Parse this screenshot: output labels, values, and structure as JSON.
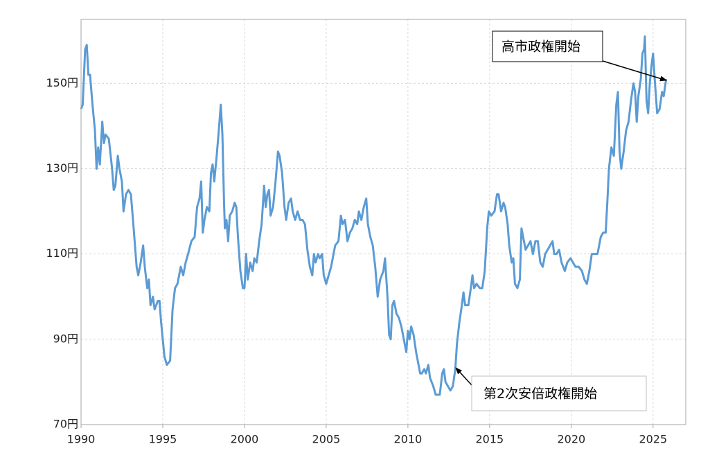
{
  "chart_data": {
    "type": "line",
    "x": [
      1990.0,
      1990.1,
      1990.25,
      1990.35,
      1990.45,
      1990.55,
      1990.7,
      1990.85,
      1990.95,
      1991.05,
      1991.15,
      1991.3,
      1991.4,
      1991.5,
      1991.7,
      1991.9,
      1992.0,
      1992.1,
      1992.25,
      1992.35,
      1992.5,
      1992.6,
      1992.75,
      1992.9,
      1993.05,
      1993.2,
      1993.4,
      1993.5,
      1993.65,
      1993.8,
      1993.9,
      1994.05,
      1994.15,
      1994.25,
      1994.4,
      1994.5,
      1994.7,
      1994.8,
      1994.9,
      1995.1,
      1995.25,
      1995.45,
      1995.6,
      1995.75,
      1995.9,
      1996.1,
      1996.25,
      1996.4,
      1996.55,
      1996.75,
      1996.95,
      1997.1,
      1997.25,
      1997.35,
      1997.45,
      1997.55,
      1997.7,
      1997.85,
      1997.95,
      1998.05,
      1998.15,
      1998.3,
      1998.45,
      1998.55,
      1998.65,
      1998.75,
      1998.8,
      1998.9,
      1999.0,
      1999.1,
      1999.25,
      1999.4,
      1999.5,
      1999.6,
      1999.75,
      1999.9,
      2000.0,
      2000.1,
      2000.2,
      2000.35,
      2000.5,
      2000.6,
      2000.75,
      2000.9,
      2001.05,
      2001.2,
      2001.3,
      2001.4,
      2001.5,
      2001.6,
      2001.75,
      2001.9,
      2002.05,
      2002.15,
      2002.3,
      2002.45,
      2002.55,
      2002.7,
      2002.85,
      2002.95,
      2003.1,
      2003.25,
      2003.4,
      2003.55,
      2003.7,
      2003.85,
      2004.0,
      2004.15,
      2004.25,
      2004.35,
      2004.5,
      2004.6,
      2004.75,
      2004.85,
      2005.0,
      2005.15,
      2005.3,
      2005.45,
      2005.55,
      2005.75,
      2005.9,
      2006.0,
      2006.15,
      2006.3,
      2006.45,
      2006.6,
      2006.75,
      2006.9,
      2007.0,
      2007.15,
      2007.3,
      2007.45,
      2007.55,
      2007.7,
      2007.85,
      2008.0,
      2008.15,
      2008.3,
      2008.5,
      2008.6,
      2008.75,
      2008.85,
      2008.95,
      2009.05,
      2009.15,
      2009.3,
      2009.45,
      2009.6,
      2009.75,
      2009.9,
      2010.0,
      2010.1,
      2010.2,
      2010.35,
      2010.5,
      2010.6,
      2010.75,
      2010.85,
      2011.0,
      2011.1,
      2011.25,
      2011.35,
      2011.55,
      2011.7,
      2011.8,
      2011.95,
      2012.1,
      2012.2,
      2012.3,
      2012.45,
      2012.6,
      2012.75,
      2012.9,
      2013.0,
      2013.15,
      2013.3,
      2013.4,
      2013.5,
      2013.7,
      2013.85,
      2013.95,
      2014.05,
      2014.2,
      2014.4,
      2014.55,
      2014.7,
      2014.85,
      2014.95,
      2015.1,
      2015.3,
      2015.45,
      2015.55,
      2015.7,
      2015.85,
      2015.95,
      2016.1,
      2016.2,
      2016.35,
      2016.45,
      2016.55,
      2016.7,
      2016.85,
      2016.95,
      2017.05,
      2017.2,
      2017.35,
      2017.5,
      2017.65,
      2017.8,
      2017.95,
      2018.1,
      2018.25,
      2018.4,
      2018.55,
      2018.7,
      2018.85,
      2018.95,
      2019.1,
      2019.25,
      2019.4,
      2019.6,
      2019.75,
      2019.95,
      2020.1,
      2020.25,
      2020.45,
      2020.65,
      2020.8,
      2020.95,
      2021.1,
      2021.25,
      2021.45,
      2021.6,
      2021.8,
      2021.95,
      2022.1,
      2022.2,
      2022.3,
      2022.45,
      2022.6,
      2022.75,
      2022.85,
      2022.95,
      2023.05,
      2023.2,
      2023.35,
      2023.5,
      2023.65,
      2023.8,
      2023.9,
      2024.0,
      2024.1,
      2024.25,
      2024.35,
      2024.45,
      2024.5,
      2024.6,
      2024.7,
      2024.8,
      2024.9,
      2025.0,
      2025.1,
      2025.25,
      2025.4,
      2025.55,
      2025.65,
      2025.8
    ],
    "values": [
      144,
      145,
      158,
      159,
      152,
      152,
      145,
      139,
      130,
      135,
      131,
      141,
      136,
      138,
      137,
      130,
      125,
      126,
      133,
      130,
      127,
      120,
      124,
      125,
      124,
      117,
      107,
      105,
      108,
      112,
      107,
      102,
      104,
      98,
      100,
      97,
      99,
      99,
      94,
      86,
      84,
      85,
      97,
      102,
      103,
      107,
      105,
      108,
      110,
      113,
      114,
      121,
      123,
      127,
      115,
      118,
      121,
      120,
      129,
      131,
      127,
      133,
      140,
      145,
      138,
      122,
      116,
      118,
      113,
      119,
      120,
      122,
      121,
      114,
      106,
      102,
      102,
      110,
      104,
      108,
      106,
      109,
      108,
      113,
      117,
      126,
      121,
      124,
      125,
      119,
      121,
      127,
      134,
      133,
      129,
      121,
      118,
      122,
      123,
      120,
      118,
      120,
      118,
      118,
      117,
      111,
      107,
      105,
      110,
      108,
      110,
      109,
      110,
      105,
      103,
      105,
      107,
      110,
      112,
      113,
      119,
      117,
      118,
      113,
      115,
      116,
      118,
      117,
      120,
      118,
      121,
      123,
      117,
      114,
      112,
      107,
      100,
      104,
      106,
      109,
      100,
      91,
      90,
      98,
      99,
      96,
      95,
      93,
      90,
      87,
      92,
      90,
      93,
      91,
      87,
      85,
      82,
      82,
      83,
      82,
      84,
      81,
      79,
      77,
      77,
      77,
      82,
      83,
      80,
      79,
      78,
      79,
      83,
      89,
      94,
      98,
      101,
      98,
      98,
      102,
      105,
      102,
      103,
      102,
      102,
      106,
      116,
      120,
      119,
      120,
      124,
      124,
      120,
      122,
      121,
      117,
      112,
      108,
      109,
      103,
      102,
      104,
      116,
      114,
      111,
      112,
      113,
      110,
      113,
      113,
      108,
      107,
      110,
      111,
      112,
      113,
      110,
      110,
      111,
      108,
      106,
      108,
      109,
      108,
      107,
      107,
      106,
      104,
      103,
      106,
      110,
      110,
      110,
      114,
      115,
      115,
      122,
      130,
      135,
      133,
      145,
      148,
      134,
      130,
      134,
      139,
      141,
      146,
      150,
      148,
      141,
      147,
      151,
      157,
      158,
      161,
      146,
      143,
      150,
      154,
      157,
      151,
      143,
      144,
      148,
      147,
      151
    ],
    "color": "#5b9bd5",
    "xlim": [
      1990,
      2027
    ],
    "ylim": [
      70,
      165
    ],
    "xticks": [
      1990,
      1995,
      2000,
      2005,
      2010,
      2015,
      2020,
      2025
    ],
    "yticks": [
      {
        "value": 70,
        "label": "70円"
      },
      {
        "value": 90,
        "label": "90円"
      },
      {
        "value": 110,
        "label": "110円"
      },
      {
        "value": 130,
        "label": "130円"
      },
      {
        "value": 150,
        "label": "150円"
      }
    ],
    "grid": true,
    "annotations": [
      {
        "label": "高市政権開始"
      },
      {
        "label": "第2次安倍政権開始"
      }
    ]
  }
}
